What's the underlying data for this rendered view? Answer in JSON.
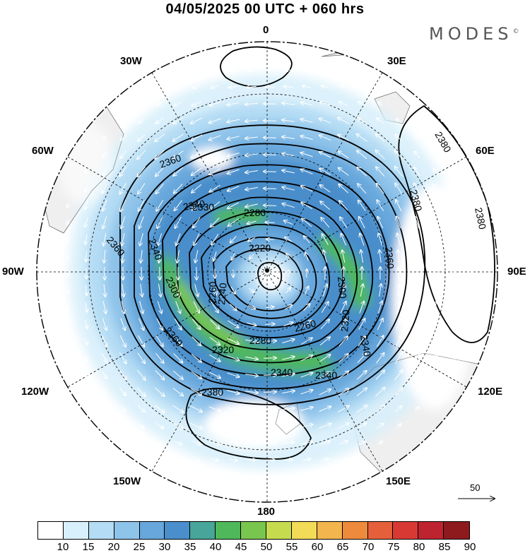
{
  "title": "04/05/2025  00 UTC  + 060 hrs",
  "brand": "MODES",
  "brand_mark": "©",
  "longitude_labels": {
    "top": "0",
    "w30": "30W",
    "e30": "30E",
    "w60": "60W",
    "e60": "60E",
    "w90": "90W",
    "e90": "90E",
    "w120": "120W",
    "e120": "120E",
    "w150": "150W",
    "e150": "150E",
    "bottom": "180"
  },
  "contour_labels": [
    "2380",
    "2380",
    "2380",
    "2380",
    "2360",
    "2360",
    "2360",
    "2360",
    "2340",
    "2340",
    "2340",
    "2340",
    "2340",
    "2330",
    "2320",
    "2320",
    "2300",
    "2300",
    "2280",
    "2280",
    "2260",
    "2260",
    "2240",
    "2220"
  ],
  "wind_reference": {
    "value": "50"
  },
  "colorbar": {
    "ticks": [
      "10",
      "15",
      "20",
      "25",
      "30",
      "35",
      "40",
      "45",
      "50",
      "55",
      "60",
      "65",
      "70",
      "75",
      "80",
      "85",
      "90"
    ],
    "colors": [
      "#ffffff",
      "#d8f0fb",
      "#b4dcf4",
      "#8ec3ea",
      "#67a7dc",
      "#4a8ecb",
      "#48a59a",
      "#4fb85a",
      "#79c64e",
      "#c6dc4e",
      "#f2dc57",
      "#f3b54d",
      "#ee8a3c",
      "#e5603a",
      "#d83a33",
      "#be2430",
      "#8e1a1e"
    ]
  }
}
